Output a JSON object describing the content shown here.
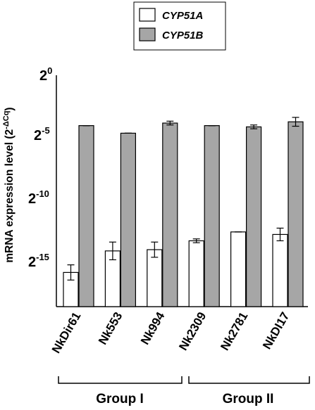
{
  "chart_data": {
    "type": "bar",
    "categories": [
      "NkDir61",
      "Nk553",
      "Nk994",
      "Nk2309",
      "Nk2781",
      "NkDI17"
    ],
    "series": [
      {
        "name": "CYP51A",
        "color": "#ffffff",
        "values": [
          -15.3,
          -13.6,
          -13.5,
          -12.8,
          -12.1,
          -12.3
        ],
        "errors": [
          0.6,
          0.7,
          0.6,
          0.15,
          0,
          0.5
        ]
      },
      {
        "name": "CYP51B",
        "color": "#a6a6a6",
        "values": [
          -3.7,
          -4.3,
          -3.5,
          -3.7,
          -3.8,
          -3.4
        ],
        "errors": [
          0,
          0,
          0.15,
          0,
          0.15,
          0.35
        ]
      }
    ],
    "ylabel": "mRNA expression level (2",
    "ylabel_sup": "-ΔCq",
    "ylabel_close": ")",
    "ylim": [
      -18,
      0
    ],
    "yscale": "log2 (exponent shown)",
    "ytick_values": [
      0,
      -5,
      -10,
      -15
    ],
    "ytick_base": "2",
    "ytick_exponents": [
      "0",
      "-5",
      "-10",
      "-15"
    ],
    "groups": [
      {
        "label": "Group I",
        "members": [
          "NkDir61",
          "Nk553",
          "Nk994"
        ]
      },
      {
        "label": "Group II",
        "members": [
          "Nk2309",
          "Nk2781",
          "NkDI17"
        ]
      }
    ],
    "legend_position": "top-center",
    "grid": false
  }
}
